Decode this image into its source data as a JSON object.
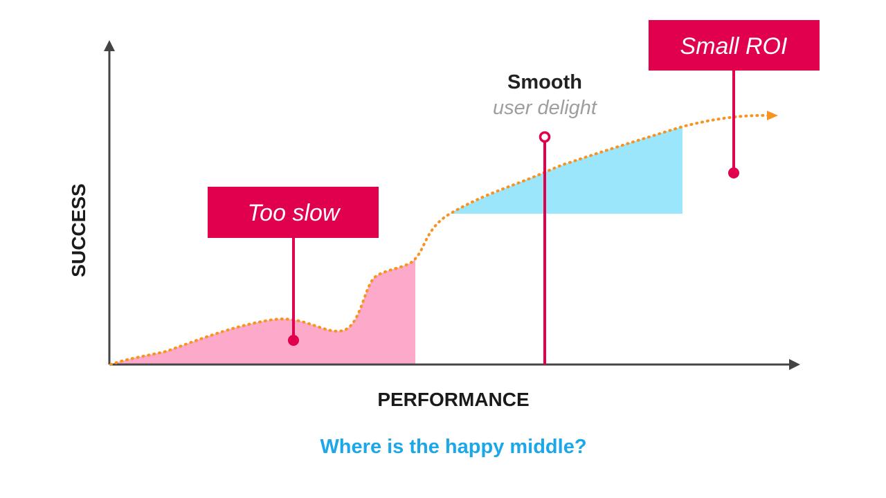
{
  "axes": {
    "x_label": "PERFORMANCE",
    "y_label": "SUCCESS"
  },
  "callouts": {
    "too_slow": "Too slow",
    "small_roi": "Small ROI",
    "smooth_title": "Smooth",
    "smooth_subtitle": "user delight"
  },
  "question": "Where is the happy middle?",
  "colors": {
    "accent": "#e0004d",
    "curve": "#f7931e",
    "pink_area": "#fda9c9",
    "blue_area": "#9be6fb",
    "question": "#1ba7e8",
    "axis": "#444444"
  }
}
